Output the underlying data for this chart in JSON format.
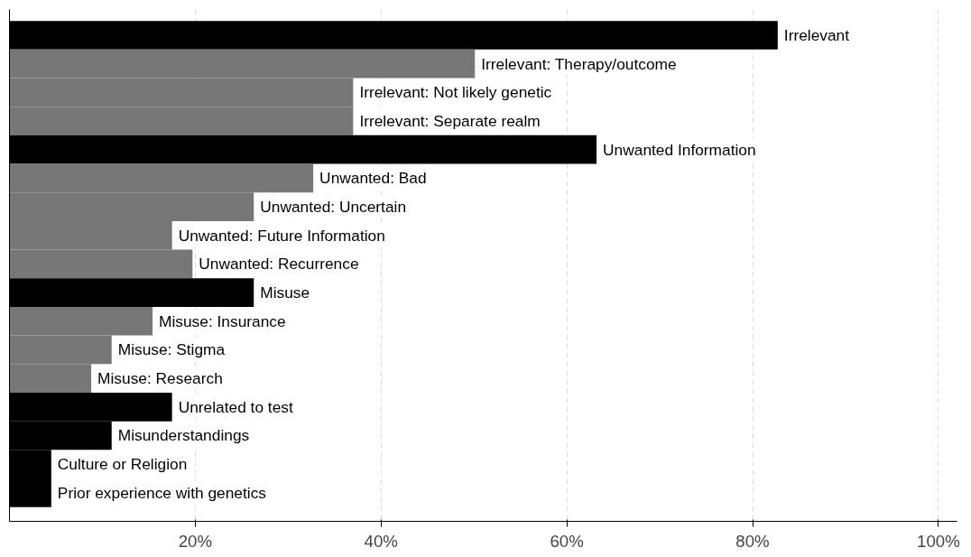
{
  "chart_data": {
    "type": "bar",
    "orientation": "horizontal",
    "categories": [
      "Irrelevant",
      "Irrelevant: Therapy/outcome",
      "Irrelevant: Not likely genetic",
      "Irrelevant: Separate realm",
      "Unwanted Information",
      "Unwanted: Bad",
      "Unwanted: Uncertain",
      "Unwanted: Future Information",
      "Unwanted: Recurrence",
      "Misuse",
      "Misuse: Insurance",
      "Misuse: Stigma",
      "Misuse: Research",
      "Unrelated to test",
      "Misunderstandings",
      "Culture or Religion",
      "Prior experience with genetics"
    ],
    "values": [
      82.7,
      50.1,
      37.0,
      37.0,
      63.2,
      32.7,
      26.3,
      17.5,
      19.7,
      26.3,
      15.4,
      11.0,
      8.8,
      17.5,
      11.0,
      4.5,
      4.5
    ],
    "colors": [
      "#000000",
      "#777777",
      "#777777",
      "#777777",
      "#000000",
      "#777777",
      "#777777",
      "#777777",
      "#777777",
      "#000000",
      "#777777",
      "#777777",
      "#777777",
      "#000000",
      "#000000",
      "#000000",
      "#000000"
    ],
    "xlim": [
      0,
      102
    ],
    "xticks": [
      {
        "value": 20,
        "label": "20%"
      },
      {
        "value": 40,
        "label": "40%"
      },
      {
        "value": 60,
        "label": "60%"
      },
      {
        "value": 80,
        "label": "80%"
      },
      {
        "value": 100,
        "label": "100%"
      }
    ],
    "grid": "x",
    "tick_labels": "x"
  }
}
